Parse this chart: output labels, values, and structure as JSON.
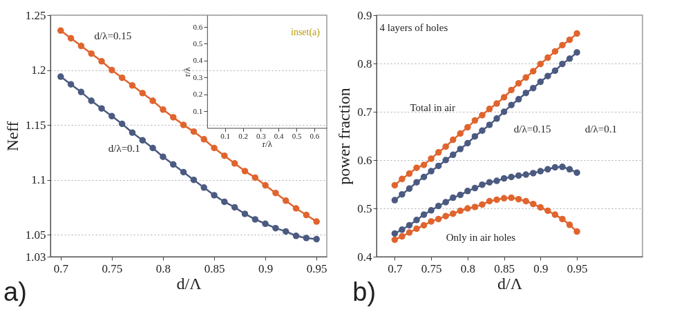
{
  "chart_data": [
    {
      "type": "line",
      "xlabel": "d/Λ",
      "ylabel": "Neff",
      "xlim": [
        0.69,
        0.96
      ],
      "ylim": [
        1.03,
        1.25
      ],
      "xticks": [
        0.7,
        0.75,
        0.8,
        0.85,
        0.9,
        0.95
      ],
      "yticks": [
        1.03,
        1.05,
        1.1,
        1.15,
        1.2,
        1.25
      ],
      "grid": "y",
      "marker": "circle",
      "line_style": "solid",
      "x2label": "r/λ",
      "x2lim": [
        0,
        0.67
      ],
      "x2ticks": [
        0.1,
        0.2,
        0.3,
        0.4,
        0.5,
        0.6
      ],
      "y2label": "r/λ",
      "y2lim": [
        0,
        0.67
      ],
      "y2ticks": [
        0.1,
        0.2,
        0.3,
        0.4,
        0.5,
        0.6
      ],
      "x": [
        0.7,
        0.71,
        0.72,
        0.73,
        0.74,
        0.75,
        0.76,
        0.77,
        0.78,
        0.79,
        0.8,
        0.81,
        0.82,
        0.83,
        0.84,
        0.85,
        0.86,
        0.87,
        0.88,
        0.89,
        0.9,
        0.91,
        0.92,
        0.93,
        0.94,
        0.95
      ],
      "series": [
        {
          "color": "#e0642e",
          "values": [
            1.236,
            1.229,
            1.222,
            1.215,
            1.208,
            1.2,
            1.193,
            1.186,
            1.179,
            1.172,
            1.164,
            1.157,
            1.15,
            1.144,
            1.137,
            1.129,
            1.122,
            1.115,
            1.108,
            1.102,
            1.095,
            1.088,
            1.081,
            1.074,
            1.068,
            1.062
          ]
        },
        {
          "color": "#4b5a80",
          "values": [
            1.194,
            1.187,
            1.18,
            1.172,
            1.165,
            1.158,
            1.151,
            1.143,
            1.136,
            1.129,
            1.121,
            1.114,
            1.107,
            1.1,
            1.093,
            1.086,
            1.08,
            1.075,
            1.069,
            1.064,
            1.06,
            1.056,
            1.053,
            1.049,
            1.047,
            1.046
          ]
        }
      ],
      "annotations": [
        "d/λ=0.15",
        "d/λ=0.1",
        "inset(a)",
        "a)"
      ]
    },
    {
      "type": "line",
      "xlabel": "d/Λ",
      "ylabel": "power fraction",
      "xlim": [
        0.675,
        1.04
      ],
      "ylim": [
        0.4,
        0.9
      ],
      "xticks": [
        0.7,
        0.75,
        0.8,
        0.85,
        0.9,
        0.95
      ],
      "yticks": [
        0.4,
        0.5,
        0.6,
        0.7,
        0.8,
        0.9
      ],
      "grid": "y",
      "marker": "circle",
      "line_style": "solid",
      "x": [
        0.7,
        0.71,
        0.72,
        0.73,
        0.74,
        0.75,
        0.76,
        0.77,
        0.78,
        0.79,
        0.8,
        0.81,
        0.82,
        0.83,
        0.84,
        0.85,
        0.86,
        0.87,
        0.88,
        0.89,
        0.9,
        0.91,
        0.92,
        0.93,
        0.94,
        0.95
      ],
      "series": [
        {
          "color": "#e0642e",
          "values": [
            0.548,
            0.561,
            0.572,
            0.584,
            0.59,
            0.603,
            0.616,
            0.628,
            0.642,
            0.655,
            0.668,
            0.682,
            0.693,
            0.706,
            0.717,
            0.73,
            0.745,
            0.759,
            0.771,
            0.784,
            0.799,
            0.812,
            0.825,
            0.838,
            0.849,
            0.862
          ]
        },
        {
          "color": "#4b5a80",
          "values": [
            0.517,
            0.529,
            0.541,
            0.554,
            0.565,
            0.577,
            0.588,
            0.6,
            0.611,
            0.623,
            0.635,
            0.649,
            0.661,
            0.673,
            0.686,
            0.7,
            0.714,
            0.726,
            0.739,
            0.749,
            0.762,
            0.774,
            0.785,
            0.799,
            0.81,
            0.823
          ]
        },
        {
          "color": "#4b5a80",
          "values": [
            0.448,
            0.456,
            0.465,
            0.476,
            0.487,
            0.496,
            0.505,
            0.513,
            0.522,
            0.528,
            0.536,
            0.542,
            0.549,
            0.554,
            0.557,
            0.562,
            0.565,
            0.568,
            0.57,
            0.573,
            0.577,
            0.581,
            0.585,
            0.586,
            0.581,
            0.574
          ]
        },
        {
          "color": "#e0642e",
          "values": [
            0.435,
            0.442,
            0.45,
            0.458,
            0.465,
            0.473,
            0.478,
            0.484,
            0.489,
            0.495,
            0.5,
            0.503,
            0.508,
            0.515,
            0.518,
            0.521,
            0.522,
            0.519,
            0.515,
            0.509,
            0.502,
            0.495,
            0.487,
            0.478,
            0.466,
            0.452
          ]
        }
      ],
      "annotations": [
        "4 layers of holes",
        "Total in air",
        "Only in air holes",
        "d/λ=0.15",
        "d/λ=0.1",
        "b)"
      ]
    }
  ]
}
